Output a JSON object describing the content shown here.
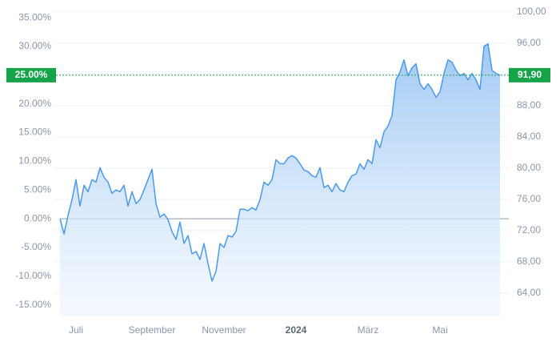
{
  "chart_data": {
    "type": "line",
    "series": [
      {
        "color": "#4a9ae8",
        "axis": "y2",
        "values": [
          73.52,
          71.57,
          73.93,
          75.97,
          78.53,
          75.15,
          77.81,
          76.99,
          78.53,
          78.22,
          80.06,
          78.83,
          78.22,
          76.79,
          77.2,
          76.99,
          77.81,
          75.15,
          76.99,
          75.46,
          75.97,
          77.2,
          78.53,
          79.86,
          75.46,
          73.72,
          74.13,
          73.42,
          71.88,
          70.86,
          73.11,
          70.35,
          71.37,
          69.02,
          69.33,
          68.3,
          70.35,
          67.79,
          65.54,
          66.77,
          70.35,
          69.84,
          71.37,
          71.17,
          71.88,
          74.74,
          74.74,
          74.54,
          74.95,
          74.64,
          75.97,
          78.22,
          77.81,
          78.53,
          81.08,
          80.57,
          80.57,
          81.29,
          81.6,
          81.29,
          80.57,
          79.75,
          79.55,
          79.04,
          78.83,
          80.06,
          77.51,
          77.81,
          76.99,
          78.02,
          77.2,
          76.99,
          78.22,
          79.04,
          79.24,
          80.57,
          79.86,
          81.08,
          80.57,
          83.64,
          82.62,
          84.66,
          85.38,
          86.71,
          91.31,
          92.33,
          93.87,
          91.82,
          92.84,
          93.35,
          90.8,
          90.08,
          90.8,
          90.08,
          89.06,
          89.78,
          92.13,
          93.87,
          93.56,
          92.54,
          91.82,
          92.13,
          91.31,
          92.13,
          91.31,
          90.08,
          95.6,
          95.91,
          92.54,
          92.13,
          91.9
        ]
      }
    ],
    "xlim": [
      0,
      110
    ],
    "xticks": [
      {
        "value": 4,
        "label": "Juli"
      },
      {
        "value": 23,
        "label": "September"
      },
      {
        "value": 41,
        "label": "November"
      },
      {
        "value": 59,
        "label": "2024"
      },
      {
        "value": 77,
        "label": "März"
      },
      {
        "value": 95,
        "label": "Mai"
      }
    ],
    "ylim": [
      -17,
      36.7
    ],
    "yticks": [
      {
        "value": 35,
        "label": "35.00%"
      },
      {
        "value": 30,
        "label": "30.00%"
      },
      {
        "value": 25,
        "label": "25.00%"
      },
      {
        "value": 20,
        "label": "20.00%"
      },
      {
        "value": 15,
        "label": "15.00%"
      },
      {
        "value": 10,
        "label": "10.00%"
      },
      {
        "value": 5,
        "label": "5.00%"
      },
      {
        "value": 0,
        "label": "0.00%"
      },
      {
        "value": -5,
        "label": "-5.00%"
      },
      {
        "value": -10,
        "label": "-10.00%"
      },
      {
        "value": -15,
        "label": "-15.00%"
      }
    ],
    "y2lim": [
      61.02,
      100.5
    ],
    "y2ticks": [
      {
        "value": 100,
        "label": "100,00"
      },
      {
        "value": 96,
        "label": "96,00"
      },
      {
        "value": 92,
        "label": "92,00"
      },
      {
        "value": 88,
        "label": "88,00"
      },
      {
        "value": 84,
        "label": "84,00"
      },
      {
        "value": 80,
        "label": "80,00"
      },
      {
        "value": 76,
        "label": "76,00"
      },
      {
        "value": 72,
        "label": "72,00"
      },
      {
        "value": 68,
        "label": "68,00"
      },
      {
        "value": 64,
        "label": "64,00"
      }
    ],
    "grid": true,
    "current": {
      "percent": {
        "value": 25,
        "label": "25.00%"
      },
      "price": {
        "value": 91.9,
        "label": "91,90"
      },
      "color": "#16a34a"
    }
  }
}
